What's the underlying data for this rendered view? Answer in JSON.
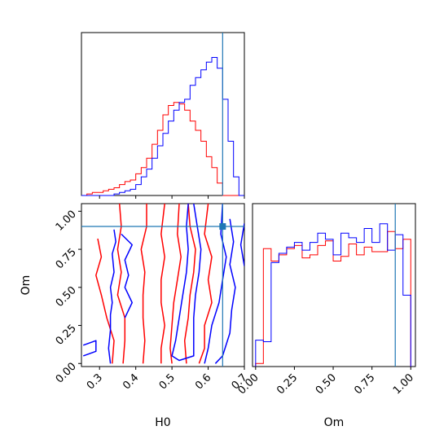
{
  "chart_data": [
    {
      "type": "step-histogram",
      "panel": "H0 marginal",
      "xlim": [
        0.25,
        0.7
      ],
      "bin_edges": [
        0.25,
        0.265,
        0.28,
        0.295,
        0.31,
        0.325,
        0.34,
        0.355,
        0.37,
        0.385,
        0.4,
        0.415,
        0.43,
        0.445,
        0.46,
        0.475,
        0.49,
        0.505,
        0.52,
        0.535,
        0.55,
        0.565,
        0.58,
        0.595,
        0.61,
        0.625,
        0.64,
        0.655,
        0.67,
        0.685,
        0.7
      ],
      "series": [
        {
          "color": "#ff0000",
          "values": [
            0.0,
            0.01,
            0.02,
            0.02,
            0.03,
            0.04,
            0.05,
            0.07,
            0.09,
            0.1,
            0.14,
            0.18,
            0.24,
            0.33,
            0.42,
            0.52,
            0.58,
            0.6,
            0.59,
            0.55,
            0.48,
            0.42,
            0.35,
            0.25,
            0.18,
            0.08,
            0.0,
            0.0,
            0.0,
            0.0
          ]
        },
        {
          "color": "#0000ff",
          "values": [
            0.0,
            0.0,
            0.0,
            0.0,
            0.0,
            0.0,
            0.01,
            0.02,
            0.03,
            0.04,
            0.07,
            0.12,
            0.17,
            0.24,
            0.32,
            0.4,
            0.48,
            0.55,
            0.6,
            0.62,
            0.71,
            0.76,
            0.81,
            0.86,
            0.89,
            0.82,
            0.62,
            0.35,
            0.12,
            0.0
          ]
        }
      ],
      "truth_line": {
        "x": 0.64,
        "color": "#1f77b4"
      },
      "xticks": [
        0.3,
        0.4,
        0.5,
        0.6,
        0.7
      ]
    },
    {
      "type": "contour",
      "panel": "H0 vs Om",
      "xlabel": "H0",
      "ylabel": "Om",
      "xlim": [
        0.25,
        0.7
      ],
      "ylim": [
        -0.02,
        1.05
      ],
      "xticks": [
        "0.3",
        "0.4",
        "0.5",
        "0.6",
        "0.7"
      ],
      "yticks": [
        "0.00",
        "0.25",
        "0.50",
        "0.75",
        "1.00"
      ],
      "truth_point": {
        "x": 0.64,
        "y": 0.9,
        "color": "#1f77b4"
      },
      "series": [
        {
          "color": "#ff0000",
          "contours": [
            [
              [
                0.295,
                0.82
              ],
              [
                0.305,
                0.7
              ],
              [
                0.29,
                0.58
              ],
              [
                0.305,
                0.45
              ],
              [
                0.32,
                0.3
              ],
              [
                0.34,
                0.15
              ],
              [
                0.335,
                0.0
              ]
            ],
            [
              [
                0.355,
                1.05
              ],
              [
                0.36,
                0.9
              ],
              [
                0.35,
                0.75
              ],
              [
                0.36,
                0.6
              ],
              [
                0.35,
                0.45
              ],
              [
                0.37,
                0.3
              ],
              [
                0.37,
                0.15
              ],
              [
                0.365,
                0.0
              ]
            ],
            [
              [
                0.43,
                1.05
              ],
              [
                0.43,
                0.9
              ],
              [
                0.415,
                0.75
              ],
              [
                0.425,
                0.6
              ],
              [
                0.42,
                0.45
              ],
              [
                0.42,
                0.3
              ],
              [
                0.425,
                0.15
              ],
              [
                0.42,
                0.0
              ]
            ],
            [
              [
                0.48,
                1.05
              ],
              [
                0.47,
                0.85
              ],
              [
                0.48,
                0.7
              ],
              [
                0.47,
                0.55
              ],
              [
                0.47,
                0.4
              ],
              [
                0.48,
                0.25
              ],
              [
                0.47,
                0.1
              ],
              [
                0.47,
                0.0
              ]
            ],
            [
              [
                0.52,
                1.05
              ],
              [
                0.515,
                0.85
              ],
              [
                0.525,
                0.7
              ],
              [
                0.515,
                0.55
              ],
              [
                0.505,
                0.4
              ],
              [
                0.5,
                0.25
              ],
              [
                0.495,
                0.1
              ],
              [
                0.5,
                0.0
              ]
            ],
            [
              [
                0.545,
                1.05
              ],
              [
                0.55,
                0.9
              ],
              [
                0.565,
                0.75
              ],
              [
                0.56,
                0.6
              ],
              [
                0.55,
                0.45
              ],
              [
                0.545,
                0.3
              ],
              [
                0.535,
                0.15
              ],
              [
                0.54,
                0.0
              ]
            ],
            [
              [
                0.6,
                1.05
              ],
              [
                0.59,
                0.85
              ],
              [
                0.61,
                0.7
              ],
              [
                0.6,
                0.55
              ],
              [
                0.61,
                0.4
              ],
              [
                0.59,
                0.25
              ],
              [
                0.59,
                0.1
              ],
              [
                0.575,
                0.0
              ]
            ]
          ]
        },
        {
          "color": "#0000ff",
          "contours": [
            [
              [
                0.34,
                0.88
              ],
              [
                0.345,
                0.8
              ],
              [
                0.335,
                0.72
              ],
              [
                0.34,
                0.6
              ],
              [
                0.33,
                0.5
              ],
              [
                0.335,
                0.4
              ],
              [
                0.33,
                0.32
              ],
              [
                0.33,
                0.22
              ],
              [
                0.325,
                0.1
              ],
              [
                0.33,
                0.0
              ]
            ],
            [
              [
                0.36,
                0.85
              ],
              [
                0.39,
                0.78
              ],
              [
                0.37,
                0.68
              ],
              [
                0.38,
                0.58
              ],
              [
                0.37,
                0.5
              ],
              [
                0.39,
                0.4
              ],
              [
                0.37,
                0.3
              ]
            ],
            [
              [
                0.255,
                0.12
              ],
              [
                0.29,
                0.15
              ],
              [
                0.29,
                0.08
              ],
              [
                0.255,
                0.05
              ]
            ],
            [
              [
                0.56,
                1.05
              ],
              [
                0.57,
                0.9
              ],
              [
                0.58,
                0.75
              ],
              [
                0.575,
                0.6
              ],
              [
                0.565,
                0.45
              ],
              [
                0.56,
                0.3
              ],
              [
                0.56,
                0.15
              ],
              [
                0.56,
                0.05
              ],
              [
                0.52,
                0.02
              ],
              [
                0.5,
                0.05
              ],
              [
                0.51,
                0.15
              ],
              [
                0.52,
                0.3
              ],
              [
                0.53,
                0.45
              ],
              [
                0.54,
                0.6
              ],
              [
                0.545,
                0.75
              ],
              [
                0.54,
                0.9
              ],
              [
                0.545,
                1.05
              ]
            ],
            [
              [
                0.64,
                1.05
              ],
              [
                0.635,
                0.85
              ],
              [
                0.65,
                0.7
              ],
              [
                0.64,
                0.55
              ],
              [
                0.63,
                0.4
              ],
              [
                0.61,
                0.25
              ],
              [
                0.6,
                0.1
              ],
              [
                0.59,
                0.0
              ]
            ],
            [
              [
                0.66,
                0.95
              ],
              [
                0.67,
                0.8
              ],
              [
                0.66,
                0.65
              ],
              [
                0.675,
                0.5
              ],
              [
                0.665,
                0.35
              ],
              [
                0.66,
                0.2
              ],
              [
                0.64,
                0.05
              ],
              [
                0.62,
                0.0
              ]
            ],
            [
              [
                0.7,
                0.92
              ],
              [
                0.69,
                0.78
              ],
              [
                0.7,
                0.64
              ]
            ]
          ]
        }
      ]
    },
    {
      "type": "step-histogram",
      "panel": "Om marginal",
      "xlabel": "Om",
      "xlim": [
        -0.02,
        1.03
      ],
      "xticks": [
        "0.00",
        "0.25",
        "0.50",
        "0.75",
        "1.00"
      ],
      "bin_edges": [
        0.0,
        0.05,
        0.1,
        0.15,
        0.2,
        0.25,
        0.3,
        0.35,
        0.4,
        0.45,
        0.5,
        0.55,
        0.6,
        0.65,
        0.7,
        0.75,
        0.8,
        0.85,
        0.9,
        0.95,
        1.0
      ],
      "series": [
        {
          "color": "#ff0000",
          "values": [
            0.02,
            0.76,
            0.68,
            0.72,
            0.76,
            0.78,
            0.7,
            0.72,
            0.78,
            0.81,
            0.68,
            0.71,
            0.79,
            0.72,
            0.77,
            0.74,
            0.74,
            0.87,
            0.76,
            0.82
          ]
        },
        {
          "color": "#0000ff",
          "values": [
            0.17,
            0.16,
            0.67,
            0.73,
            0.77,
            0.8,
            0.75,
            0.8,
            0.86,
            0.82,
            0.72,
            0.86,
            0.83,
            0.8,
            0.89,
            0.8,
            0.92,
            0.75,
            0.85,
            0.46
          ]
        }
      ],
      "truth_line": {
        "x": 0.9,
        "color": "#1f77b4"
      }
    }
  ]
}
